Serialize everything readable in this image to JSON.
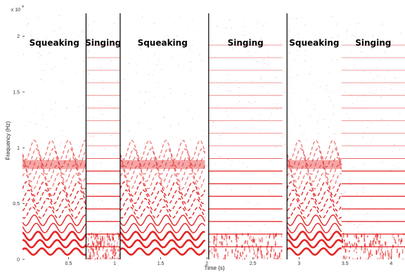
{
  "chart_data": {
    "type": "heatmap",
    "title": "",
    "xlabel": "Time (s)",
    "ylabel": "Frequency (Hz)",
    "y_multiplier": "x 10^4",
    "xlim": [
      0,
      4.15
    ],
    "ylim": [
      0,
      22050
    ],
    "x_ticks": [
      {
        "v": 0.5,
        "label": "0.5"
      },
      {
        "v": 1,
        "label": "1"
      },
      {
        "v": 1.5,
        "label": "1.5"
      },
      {
        "v": 2,
        "label": "2"
      },
      {
        "v": 2.5,
        "label": "2.5"
      },
      {
        "v": 3,
        "label": "3"
      },
      {
        "v": 3.5,
        "label": "3.5"
      },
      {
        "v": 4,
        "label": "4"
      }
    ],
    "y_ticks": [
      {
        "v": 0,
        "label": "0"
      },
      {
        "v": 5000,
        "label": "0.5"
      },
      {
        "v": 10000,
        "label": "1"
      },
      {
        "v": 15000,
        "label": "1.5"
      },
      {
        "v": 20000,
        "label": "2"
      }
    ],
    "segment_boundaries_s": [
      0.69,
      1.06,
      2.02,
      2.87
    ],
    "segments": [
      {
        "label": "Squeaking",
        "start": 0,
        "end": 0.69
      },
      {
        "label": "Singing",
        "start": 0.69,
        "end": 1.06
      },
      {
        "label": "Squeaking",
        "start": 1.06,
        "end": 1.98
      },
      {
        "label": "Singing",
        "start": 2.02,
        "end": 2.82
      },
      {
        "label": "Squeaking",
        "start": 2.87,
        "end": 3.46
      },
      {
        "label": "Singing",
        "start": 3.46,
        "end": 4.15
      }
    ],
    "singing_harmonic_spacing_hz": 1130,
    "colors": {
      "energy": "#e00000",
      "boundary": "#000000"
    }
  }
}
